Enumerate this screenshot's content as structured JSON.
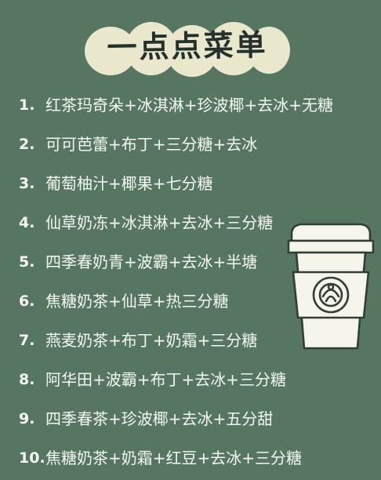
{
  "colors": {
    "background": "#567661",
    "title_bubble": "#e9e7cc",
    "title_text": "#24302b",
    "menu_text": "#f5f8f2",
    "cup_fill": "#f5f5ec",
    "cup_stroke": "#2f3f37"
  },
  "title": "一点点菜单",
  "menu": [
    {
      "num": "1.",
      "text": "红茶玛奇朵+冰淇淋+珍波椰+去冰+无糖"
    },
    {
      "num": "2.",
      "text": "可可芭蕾+布丁+三分糖+去冰"
    },
    {
      "num": "3.",
      "text": "葡萄柚汁+椰果+七分糖"
    },
    {
      "num": "4.",
      "text": "仙草奶冻+冰淇淋+去冰+三分糖"
    },
    {
      "num": "5.",
      "text": "四季春奶青+波霸+去冰+半塘"
    },
    {
      "num": "6.",
      "text": "焦糖奶茶+仙草+热三分糖"
    },
    {
      "num": "7.",
      "text": "燕麦奶茶+布丁+奶霜+三分糖"
    },
    {
      "num": "8.",
      "text": "阿华田+波霸+布丁+去冰+三分糖"
    },
    {
      "num": "9.",
      "text": "四季春茶+珍波椰+去冰+五分甜"
    },
    {
      "num": "10.",
      "text": "焦糖奶茶+奶霜+红豆+去冰+三分糖"
    }
  ],
  "icons": {
    "coffee_cup": "coffee-cup-icon",
    "siren_logo": "siren-logo-icon"
  }
}
